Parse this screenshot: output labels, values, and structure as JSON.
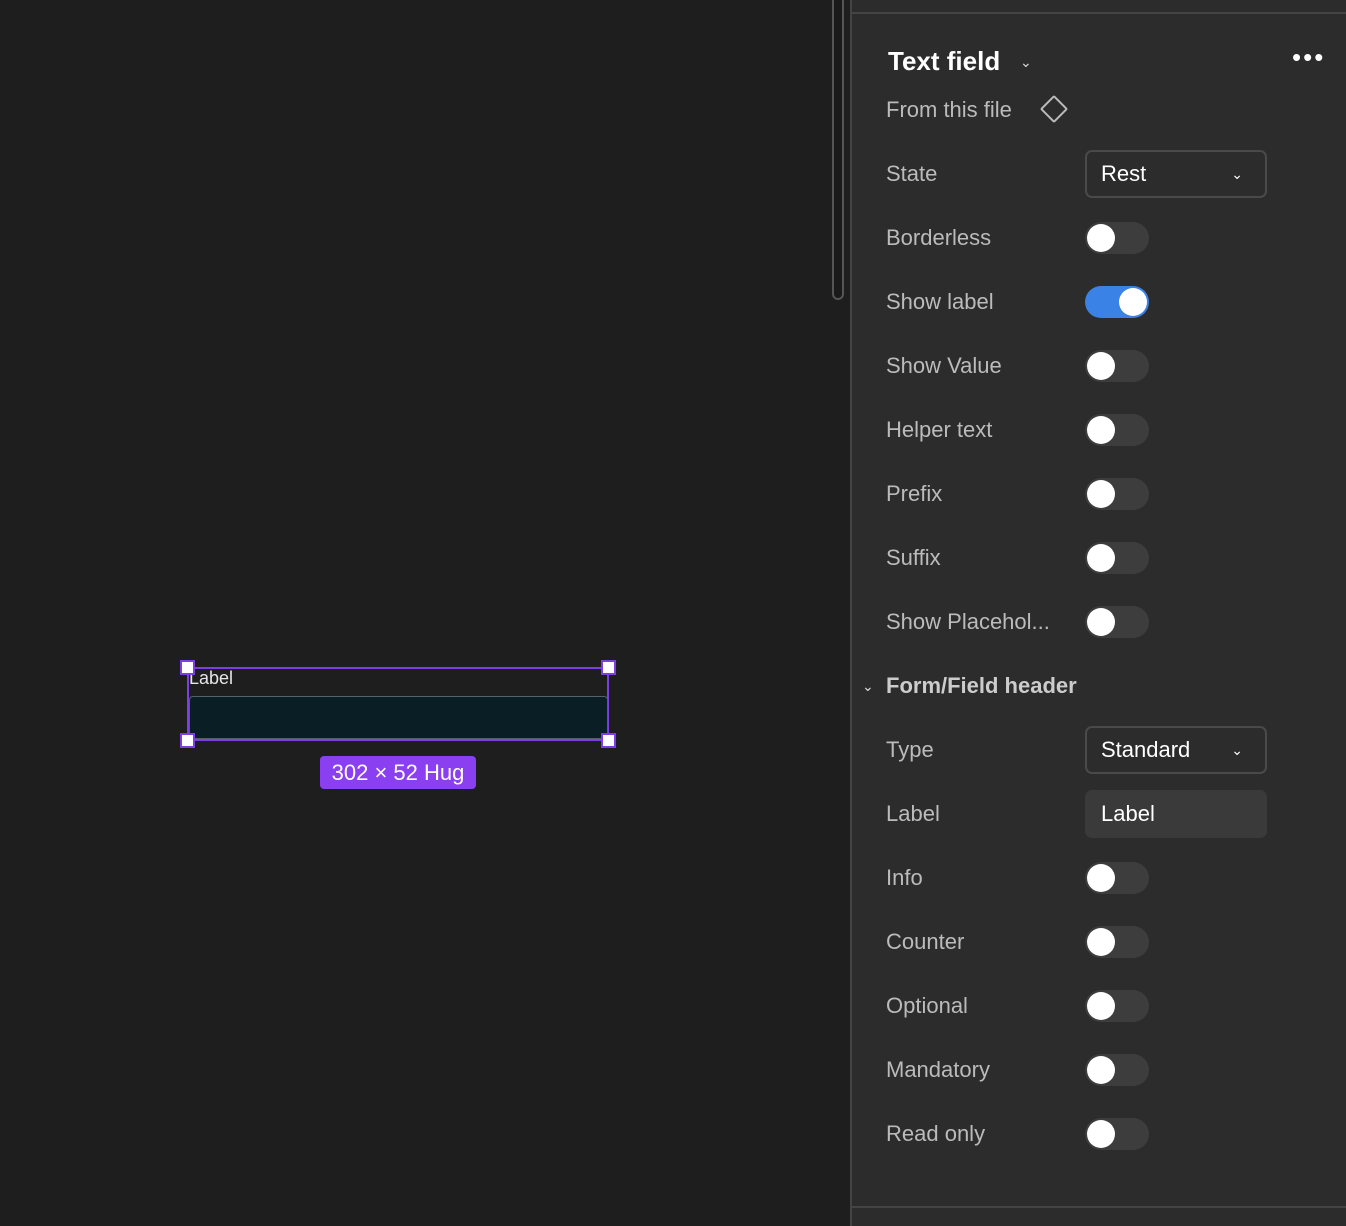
{
  "canvas": {
    "field_label": "Label",
    "size_badge": "302 × 52 Hug"
  },
  "panel": {
    "title": "Text field",
    "source": "From this file",
    "state": {
      "label": "State",
      "value": "Rest"
    },
    "toggles": [
      {
        "label": "Borderless",
        "on": false
      },
      {
        "label": "Show label",
        "on": true
      },
      {
        "label": "Show Value",
        "on": false
      },
      {
        "label": "Helper text",
        "on": false
      },
      {
        "label": "Prefix",
        "on": false
      },
      {
        "label": "Suffix",
        "on": false
      },
      {
        "label": "Show Placehol...",
        "on": false
      }
    ],
    "section": {
      "title": "Form/Field header",
      "type": {
        "label": "Type",
        "value": "Standard"
      },
      "label_field": {
        "label": "Label",
        "value": "Label"
      },
      "toggles": [
        {
          "label": "Info",
          "on": false
        },
        {
          "label": "Counter",
          "on": false
        },
        {
          "label": "Optional",
          "on": false
        },
        {
          "label": "Mandatory",
          "on": false
        },
        {
          "label": "Read only",
          "on": false
        }
      ]
    }
  },
  "colors": {
    "accent": "#3b82e6",
    "selection": "#7b3fe4",
    "badge": "#8a3ff0"
  }
}
